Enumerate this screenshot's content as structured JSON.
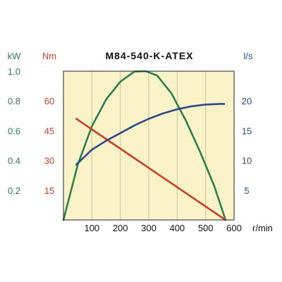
{
  "chart_data": {
    "type": "line",
    "title": "M84-540-K-ATEX",
    "x_axis": {
      "unit": "r/min",
      "range": [
        0,
        600
      ],
      "ticks": [
        "100",
        "200",
        "300",
        "400",
        "500",
        "600"
      ],
      "tick_values": [
        100,
        200,
        300,
        400,
        500,
        600
      ]
    },
    "axes": {
      "power": {
        "unit": "kW",
        "range": [
          0,
          1.0
        ],
        "ticks": [
          "1.0",
          "0.8",
          "0.6",
          "0.4",
          "0.2"
        ],
        "tick_values": [
          1.0,
          0.8,
          0.6,
          0.4,
          0.2
        ],
        "color": "#2e7d4f"
      },
      "torque": {
        "unit": "Nm",
        "range": [
          0,
          75
        ],
        "ticks": [
          "60",
          "45",
          "30",
          "15"
        ],
        "tick_values": [
          60,
          45,
          30,
          15
        ],
        "color": "#c8402a"
      },
      "flow": {
        "unit": "l/s",
        "range": [
          0,
          25
        ],
        "ticks": [
          "20",
          "15",
          "10",
          "5"
        ],
        "tick_values": [
          20,
          15,
          10,
          5
        ],
        "color": "#2c4a8e"
      }
    },
    "series": [
      {
        "axis": "power",
        "color": "#2e7d4f",
        "x": [
          0,
          50,
          100,
          150,
          200,
          250,
          290,
          330,
          380,
          430,
          480,
          530,
          570
        ],
        "y": [
          0,
          0.37,
          0.63,
          0.81,
          0.93,
          0.998,
          1.0,
          0.97,
          0.85,
          0.67,
          0.46,
          0.23,
          0.0
        ]
      },
      {
        "axis": "torque",
        "color": "#c8402a",
        "x": [
          45,
          570
        ],
        "y": [
          51,
          0
        ]
      },
      {
        "axis": "flow",
        "color": "#2c4a8e",
        "x": [
          45,
          100,
          150,
          200,
          250,
          300,
          350,
          400,
          450,
          500,
          550,
          565
        ],
        "y": [
          9.3,
          11.8,
          13.3,
          14.6,
          15.9,
          17.0,
          17.9,
          18.6,
          19.1,
          19.4,
          19.5,
          19.5
        ]
      }
    ],
    "grid": "vertical",
    "background": "#faf3c8"
  }
}
